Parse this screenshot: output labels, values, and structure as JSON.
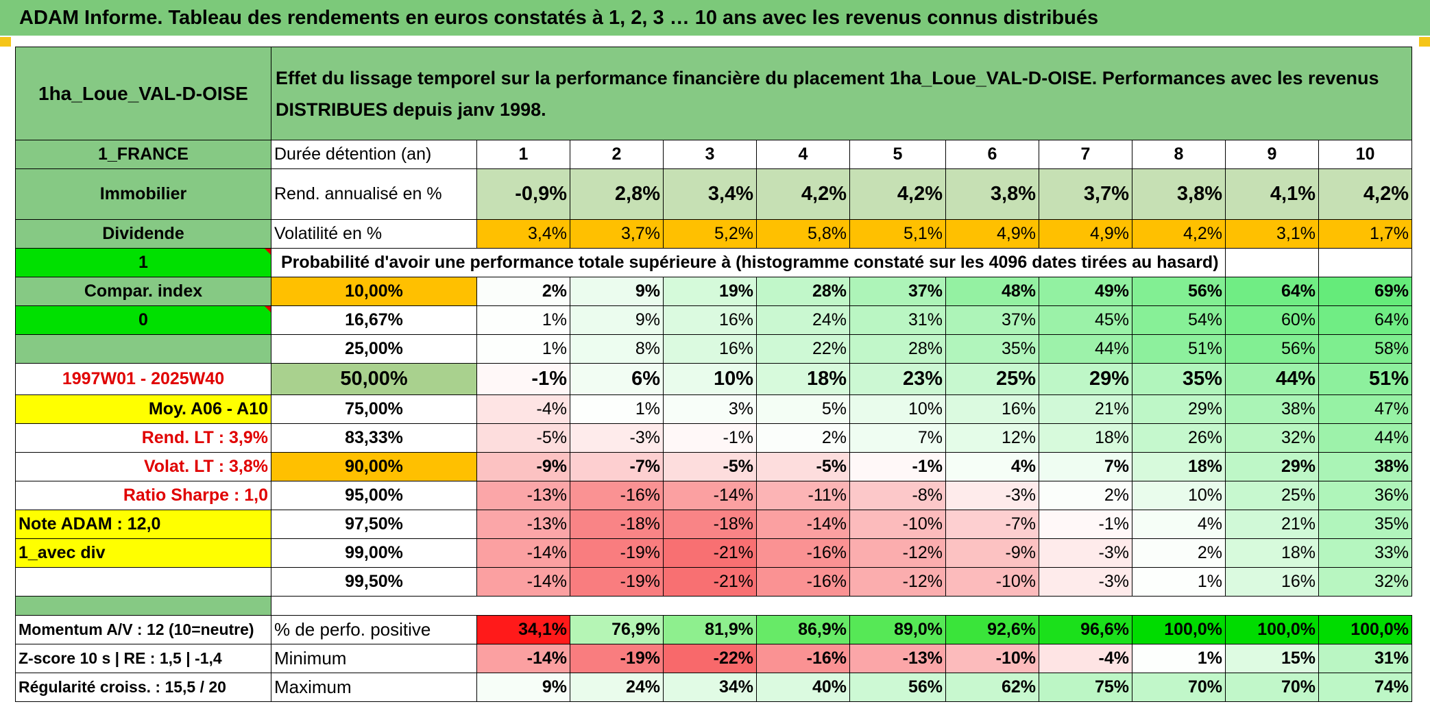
{
  "header": {
    "title": "ADAM Informe. Tableau des rendements en euros constatés à 1, 2, 3 … 10 ans avec les revenus connus distribués"
  },
  "fund": {
    "name": "1ha_Loue_VAL-D-OISE",
    "description": "Effet du lissage temporel sur la performance financière du placement 1ha_Loue_VAL-D-OISE. Performances avec les revenus DISTRIBUES depuis janv 1998."
  },
  "side": {
    "country": "1_FRANCE",
    "category": "Immobilier",
    "income": "Dividende",
    "flag1": "1",
    "compar_index": "Compar. index",
    "flag0": "0",
    "period": "1997W01 - 2025W40",
    "moy": "Moy. A06 - A10",
    "rend_lt": "Rend. LT :   3,9%",
    "volat_lt": "Volat. LT :   3,8%",
    "sharpe": "Ratio Sharpe :    1,0",
    "note": "Note ADAM : 12,0",
    "avec_div": "1_avec div",
    "momentum": "Momentum A/V : 12 (10=neutre)",
    "zscore": "Z-score 10 s | RE : 1,5 | -1,4",
    "regularite": "Régularité croiss. : 15,5 / 20"
  },
  "years": {
    "label": "Durée détention (an)",
    "values": [
      "1",
      "2",
      "3",
      "4",
      "5",
      "6",
      "7",
      "8",
      "9",
      "10"
    ]
  },
  "rend": {
    "label": "Rend. annualisé en %",
    "values": [
      "-0,9%",
      "2,8%",
      "3,4%",
      "4,2%",
      "4,2%",
      "3,8%",
      "3,7%",
      "3,8%",
      "4,1%",
      "4,2%"
    ]
  },
  "volat": {
    "label": "Volatilité en %",
    "values": [
      "3,4%",
      "3,7%",
      "5,2%",
      "5,8%",
      "5,1%",
      "4,9%",
      "4,9%",
      "4,2%",
      "3,1%",
      "1,7%"
    ]
  },
  "prob_title": "Probabilité d'avoir une performance totale supérieure à (histogramme constaté sur les 4096 dates tirées au hasard)",
  "prob_rows": [
    {
      "p": "10,00%",
      "v": [
        "2%",
        "9%",
        "19%",
        "28%",
        "37%",
        "48%",
        "49%",
        "56%",
        "64%",
        "69%"
      ]
    },
    {
      "p": "16,67%",
      "v": [
        "1%",
        "9%",
        "16%",
        "24%",
        "31%",
        "37%",
        "45%",
        "54%",
        "60%",
        "64%"
      ]
    },
    {
      "p": "25,00%",
      "v": [
        "1%",
        "8%",
        "16%",
        "22%",
        "28%",
        "35%",
        "44%",
        "51%",
        "56%",
        "58%"
      ]
    },
    {
      "p": "50,00%",
      "v": [
        "-1%",
        "6%",
        "10%",
        "18%",
        "23%",
        "25%",
        "29%",
        "35%",
        "44%",
        "51%"
      ]
    },
    {
      "p": "75,00%",
      "v": [
        "-4%",
        "1%",
        "3%",
        "5%",
        "10%",
        "16%",
        "21%",
        "29%",
        "38%",
        "47%"
      ]
    },
    {
      "p": "83,33%",
      "v": [
        "-5%",
        "-3%",
        "-1%",
        "2%",
        "7%",
        "12%",
        "18%",
        "26%",
        "32%",
        "44%"
      ]
    },
    {
      "p": "90,00%",
      "v": [
        "-9%",
        "-7%",
        "-5%",
        "-5%",
        "-1%",
        "4%",
        "7%",
        "18%",
        "29%",
        "38%"
      ]
    },
    {
      "p": "95,00%",
      "v": [
        "-13%",
        "-16%",
        "-14%",
        "-11%",
        "-8%",
        "-3%",
        "2%",
        "10%",
        "25%",
        "36%"
      ]
    },
    {
      "p": "97,50%",
      "v": [
        "-13%",
        "-18%",
        "-18%",
        "-14%",
        "-10%",
        "-7%",
        "-1%",
        "4%",
        "21%",
        "35%"
      ]
    },
    {
      "p": "99,00%",
      "v": [
        "-14%",
        "-19%",
        "-21%",
        "-16%",
        "-12%",
        "-9%",
        "-3%",
        "2%",
        "18%",
        "33%"
      ]
    },
    {
      "p": "99,50%",
      "v": [
        "-14%",
        "-19%",
        "-21%",
        "-16%",
        "-12%",
        "-10%",
        "-3%",
        "1%",
        "16%",
        "32%"
      ]
    }
  ],
  "positive": {
    "label": "% de perfo. positive",
    "values": [
      "34,1%",
      "76,9%",
      "81,9%",
      "86,9%",
      "89,0%",
      "92,6%",
      "96,6%",
      "100,0%",
      "100,0%",
      "100,0%"
    ]
  },
  "minimum": {
    "label": "Minimum",
    "values": [
      "-14%",
      "-19%",
      "-22%",
      "-16%",
      "-13%",
      "-10%",
      "-4%",
      "1%",
      "15%",
      "31%"
    ]
  },
  "maximum": {
    "label": "Maximum",
    "values": [
      "9%",
      "24%",
      "34%",
      "40%",
      "56%",
      "62%",
      "75%",
      "70%",
      "70%",
      "74%"
    ]
  }
}
